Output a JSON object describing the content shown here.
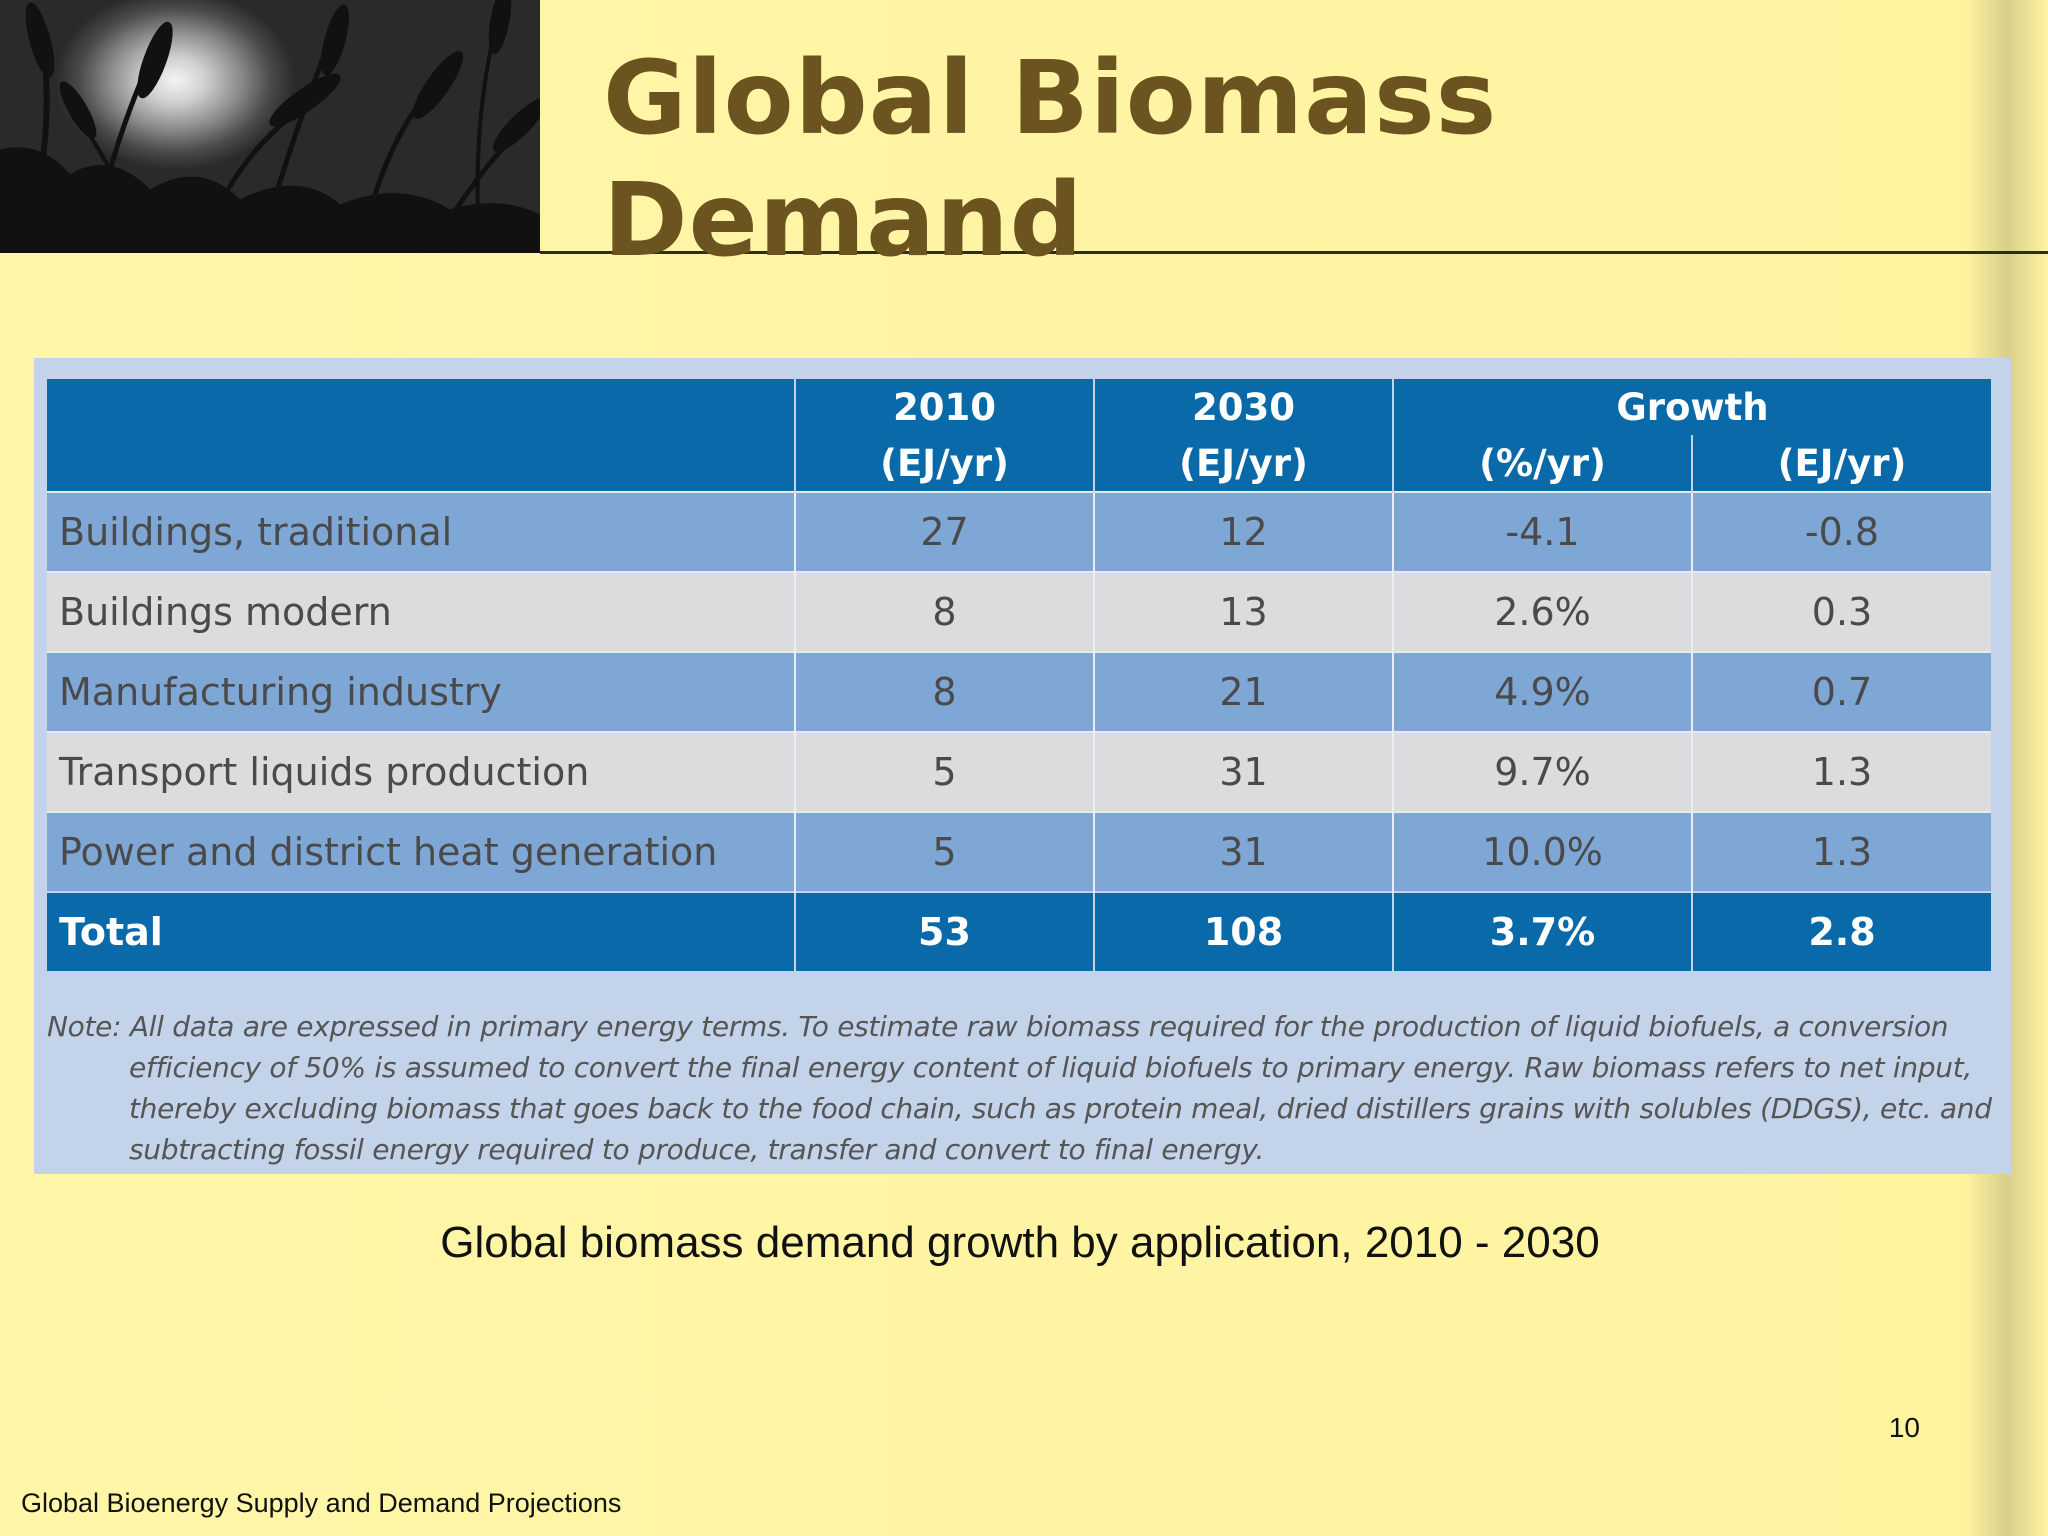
{
  "slide": {
    "title": "Global Biomass Demand",
    "caption": "Global biomass demand growth by application, 2010 - 2030",
    "page_number": "10",
    "footer": "Global Bioenergy Supply and Demand Projections"
  },
  "header_image": {
    "icon": "wheat-silhouette-photo"
  },
  "table": {
    "headers": {
      "col_2010_year": "2010",
      "col_2010_unit": "(EJ/yr)",
      "col_2030_year": "2030",
      "col_2030_unit": "(EJ/yr)",
      "growth": "Growth",
      "growth_pct_unit": "(%/yr)",
      "growth_ej_unit": "(EJ/yr)"
    },
    "rows": [
      {
        "label": "Buildings, traditional",
        "v2010": "27",
        "v2030": "12",
        "growth_pct": "-4.1",
        "growth_ej": "-0.8"
      },
      {
        "label": "Buildings modern",
        "v2010": "8",
        "v2030": "13",
        "growth_pct": "2.6%",
        "growth_ej": "0.3"
      },
      {
        "label": "Manufacturing industry",
        "v2010": "8",
        "v2030": "21",
        "growth_pct": "4.9%",
        "growth_ej": "0.7"
      },
      {
        "label": "Transport liquids production",
        "v2010": "5",
        "v2030": "31",
        "growth_pct": "9.7%",
        "growth_ej": "1.3"
      },
      {
        "label": "Power and district heat generation",
        "v2010": "5",
        "v2030": "31",
        "growth_pct": "10.0%",
        "growth_ej": "1.3"
      }
    ],
    "total": {
      "label": "Total",
      "v2010": "53",
      "v2030": "108",
      "growth_pct": "3.7%",
      "growth_ej": "2.8"
    },
    "note": "Note: All data are expressed in primary energy terms. To estimate raw biomass required for the production of liquid biofuels, a conversion efficiency of 50% is assumed to convert the final energy content of liquid biofuels to primary energy. Raw biomass refers to net input, thereby excluding biomass that goes back to the food chain, such as protein meal, dried distillers grains with solubles (DDGS), etc. and subtracting fossil energy required to produce, transfer and convert to final energy."
  },
  "colors": {
    "background": "#fff5a6",
    "title": "#6b5420",
    "table_header": "#0a6aa9",
    "row_blue": "#7fa7d6",
    "row_grey": "#dcdcdf",
    "panel": "#c3d3ea"
  }
}
